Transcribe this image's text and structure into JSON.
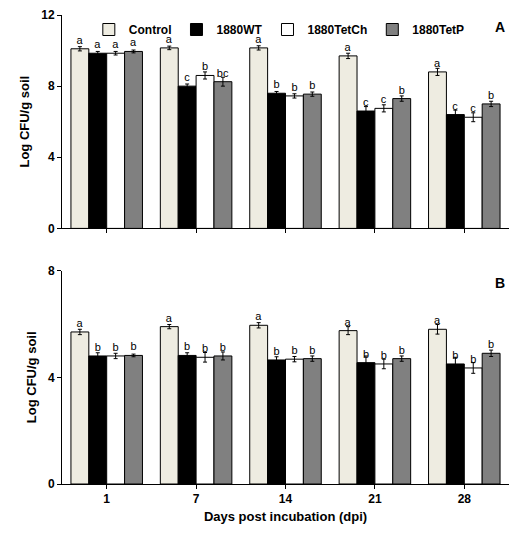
{
  "chart_data": [
    {
      "type": "bar",
      "annotations": [
        "A"
      ],
      "y_label": "Log CFU/g soil",
      "categories": [
        "1",
        "7",
        "14",
        "21",
        "28"
      ],
      "ylim": [
        0,
        12
      ],
      "yticks": [
        0,
        4,
        8,
        12
      ],
      "legend": "top",
      "tick_labels": "y",
      "grid": false,
      "series": [
        {
          "name": "Control",
          "color": "#eeece1",
          "values": [
            10.1,
            10.15,
            10.15,
            9.7,
            8.8
          ],
          "errors": [
            0.12,
            0.1,
            0.12,
            0.15,
            0.2
          ],
          "letters": [
            "a",
            "a",
            "a",
            "a",
            "a"
          ]
        },
        {
          "name": "1880WT",
          "color": "#000000",
          "values": [
            9.85,
            8.0,
            7.6,
            6.6,
            6.4
          ],
          "errors": [
            0.1,
            0.12,
            0.1,
            0.25,
            0.25
          ],
          "letters": [
            "a",
            "c",
            "b",
            "c",
            "c"
          ]
        },
        {
          "name": "1880TetCh",
          "color": "#ffffff",
          "values": [
            9.85,
            8.6,
            7.45,
            6.75,
            6.25
          ],
          "errors": [
            0.1,
            0.2,
            0.12,
            0.2,
            0.25
          ],
          "letters": [
            "a",
            "b",
            "b",
            "c",
            "c"
          ]
        },
        {
          "name": "1880TetP",
          "color": "#808080",
          "values": [
            9.95,
            8.25,
            7.55,
            7.3,
            7.0
          ],
          "errors": [
            0.08,
            0.25,
            0.12,
            0.15,
            0.15
          ],
          "letters": [
            "a",
            "bc",
            "b",
            "b",
            "b"
          ]
        }
      ]
    },
    {
      "type": "bar",
      "annotations": [
        "B"
      ],
      "y_label": "Log CFU/g soil",
      "x_label": "Days post incubation (dpi)",
      "categories": [
        "1",
        "7",
        "14",
        "21",
        "28"
      ],
      "ylim": [
        0,
        8
      ],
      "yticks": [
        0,
        4,
        8
      ],
      "grid": false,
      "series": [
        {
          "name": "Control",
          "color": "#eeece1",
          "values": [
            5.7,
            5.9,
            5.95,
            5.75,
            5.8
          ],
          "errors": [
            0.1,
            0.08,
            0.1,
            0.15,
            0.18
          ],
          "letters": [
            "a",
            "a",
            "a",
            "a",
            "a"
          ]
        },
        {
          "name": "1880WT",
          "color": "#000000",
          "values": [
            4.8,
            4.82,
            4.65,
            4.55,
            4.5
          ],
          "errors": [
            0.12,
            0.1,
            0.12,
            0.25,
            0.25
          ],
          "letters": [
            "b",
            "b",
            "b",
            "b",
            "b"
          ]
        },
        {
          "name": "1880TetCh",
          "color": "#ffffff",
          "values": [
            4.8,
            4.75,
            4.68,
            4.5,
            4.35
          ],
          "errors": [
            0.1,
            0.18,
            0.1,
            0.18,
            0.2
          ],
          "letters": [
            "b",
            "b",
            "b",
            "b",
            "b"
          ]
        },
        {
          "name": "1880TetP",
          "color": "#808080",
          "values": [
            4.82,
            4.8,
            4.7,
            4.7,
            4.9
          ],
          "errors": [
            0.05,
            0.15,
            0.1,
            0.1,
            0.12
          ],
          "letters": [
            "b",
            "b",
            "b",
            "b",
            "b"
          ]
        }
      ]
    }
  ]
}
